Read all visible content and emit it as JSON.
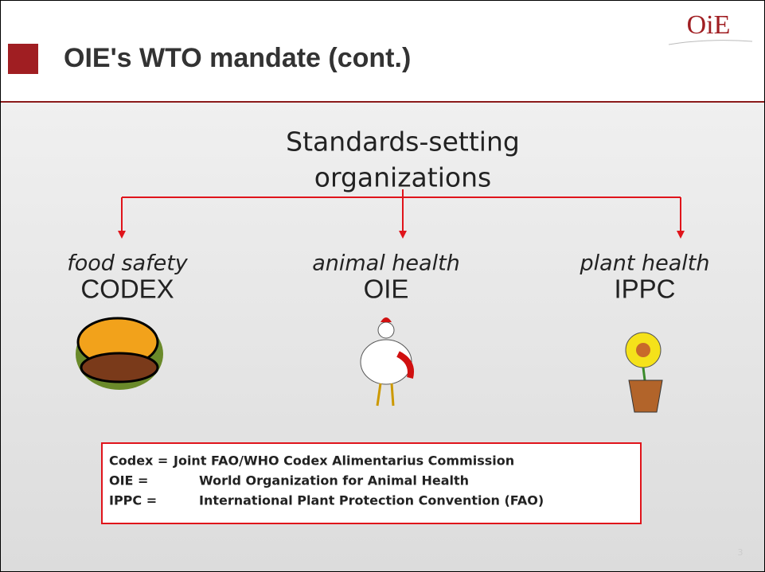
{
  "header": {
    "title": "OIE's WTO mandate (cont.)",
    "logo": "OiE"
  },
  "heading": {
    "lines": [
      "Standards-setting",
      "organizations"
    ]
  },
  "organizations": [
    {
      "domain": "food safety",
      "name": "CODEX"
    },
    {
      "domain": "animal health",
      "name": "OIE"
    },
    {
      "domain": "plant health",
      "name": "IPPC"
    }
  ],
  "legend": [
    {
      "term": "Codex =",
      "definition": "Joint FAO/WHO Codex Alimentarius Commission"
    },
    {
      "term": "OIE =",
      "definition": "World Organization for Animal Health"
    },
    {
      "term": "IPPC =",
      "definition": "International Plant Protection Convention (FAO)"
    }
  ],
  "page_number": "3"
}
